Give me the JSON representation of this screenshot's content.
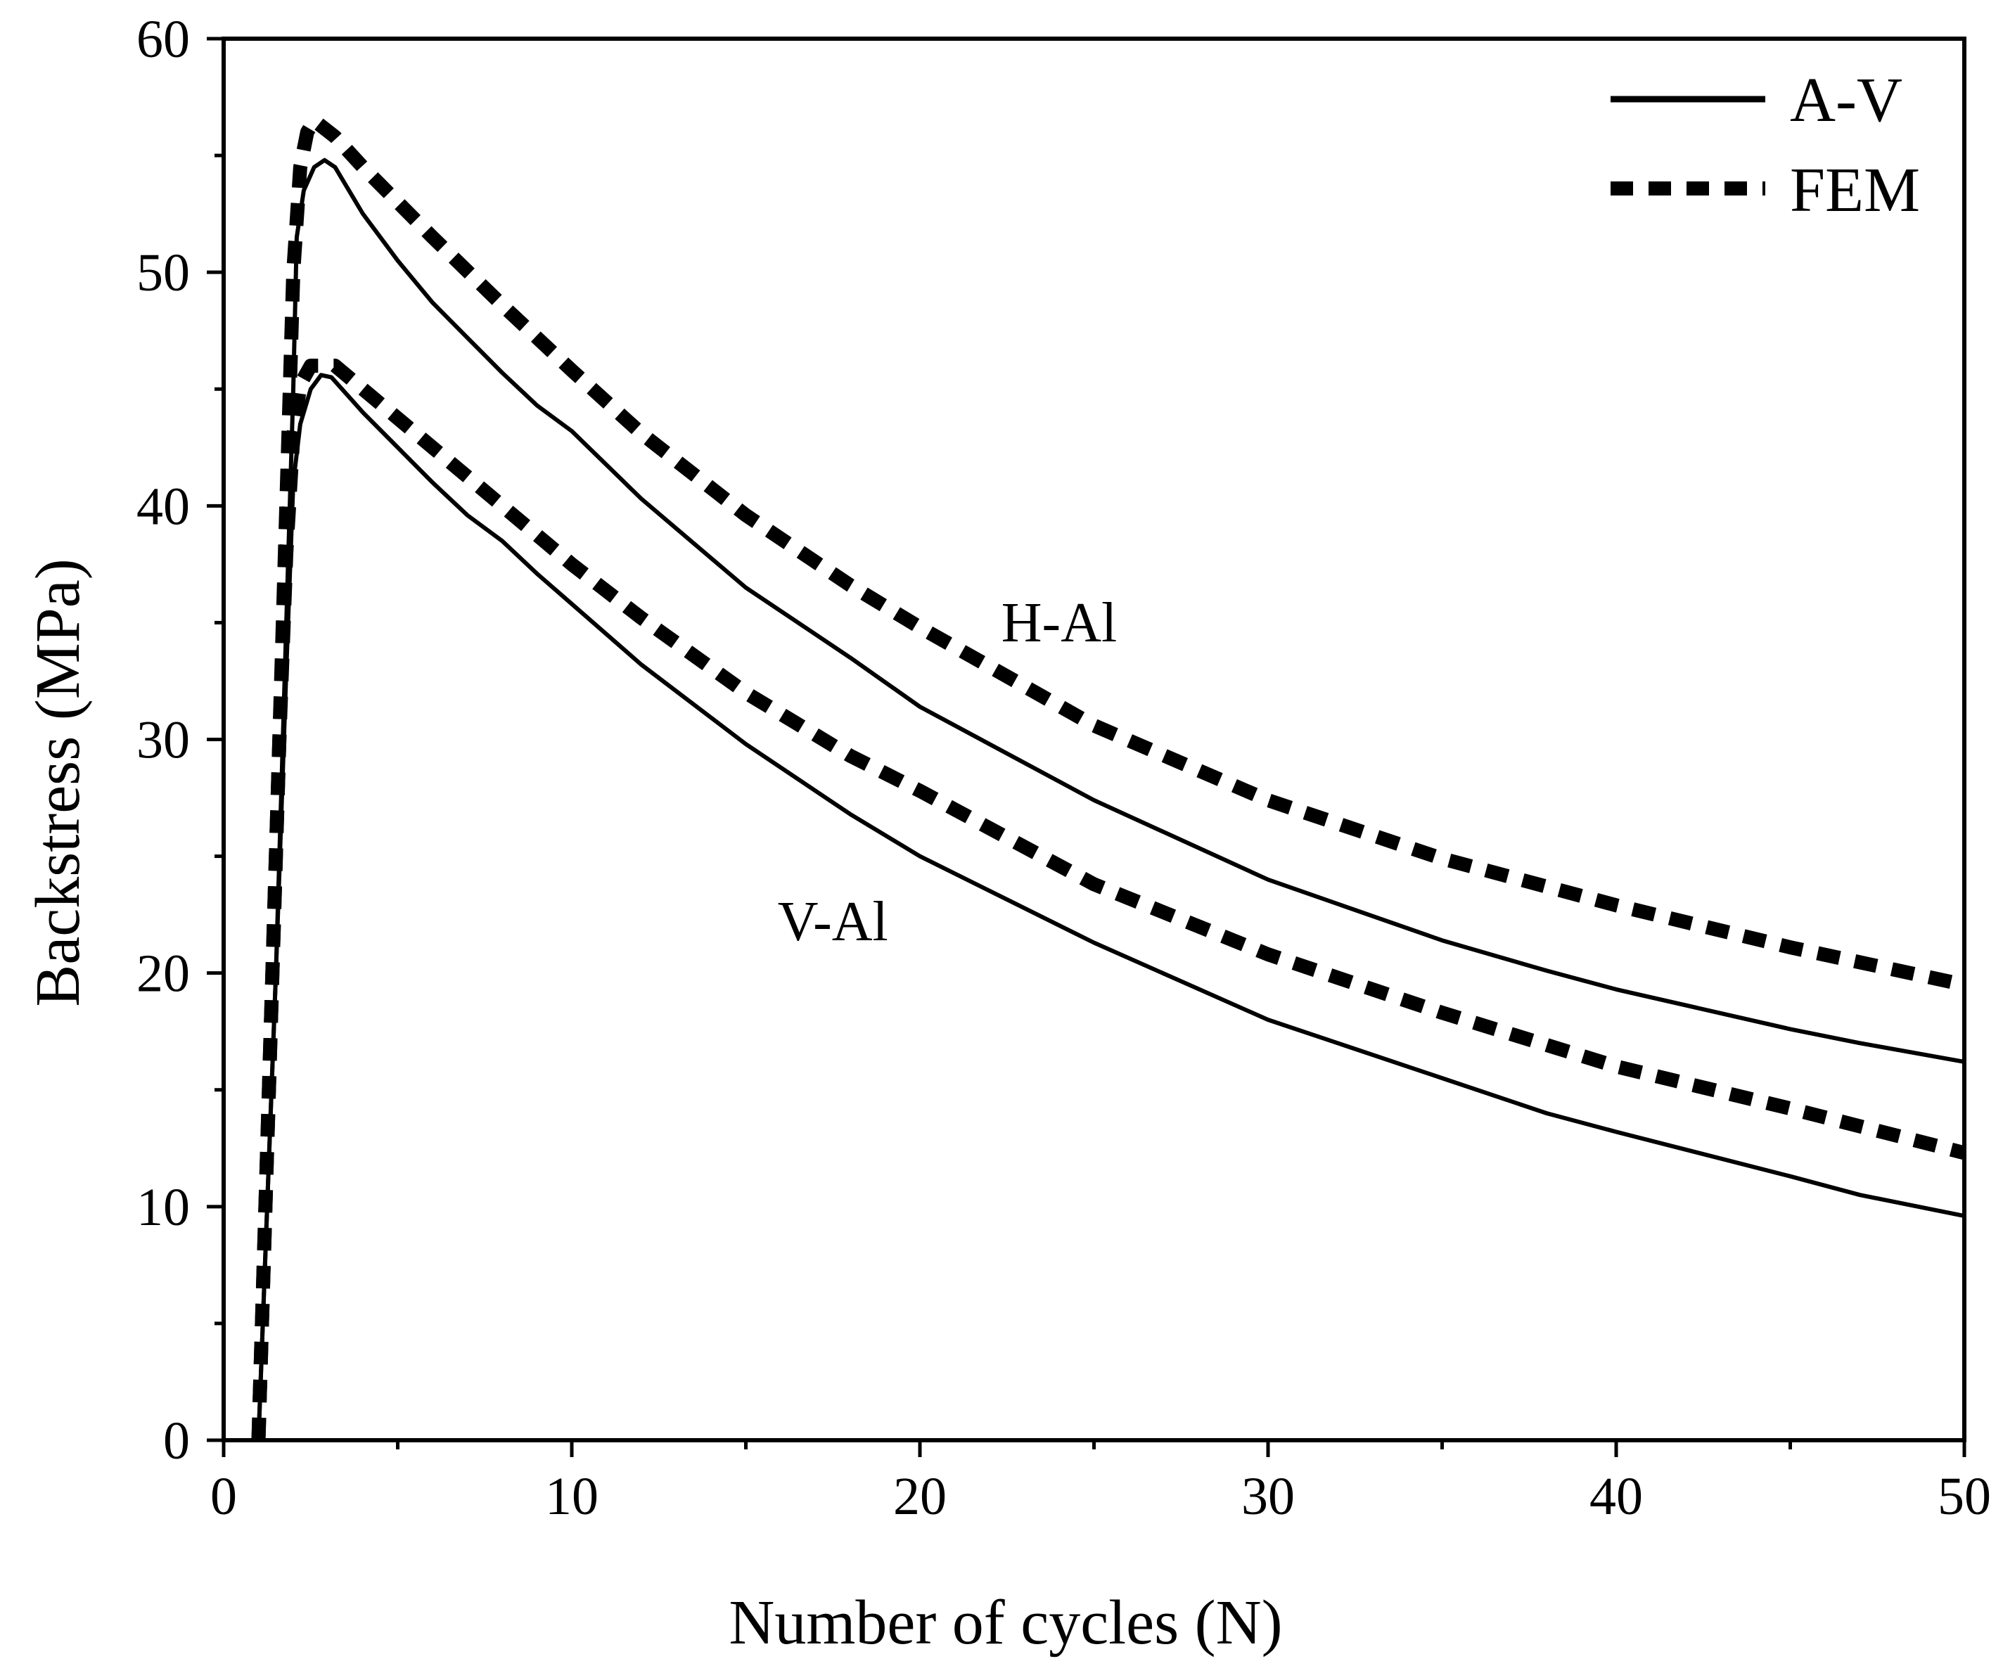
{
  "chart_data": {
    "type": "line",
    "title": "",
    "xlabel": "Number of cycles (N)",
    "ylabel": "Backstress (MPa)",
    "xlim": [
      0,
      50
    ],
    "ylim": [
      0,
      60
    ],
    "x_ticks": [
      0,
      10,
      20,
      30,
      40,
      50
    ],
    "y_ticks": [
      0,
      10,
      20,
      30,
      40,
      50,
      60
    ],
    "x_tick_labels": [
      "0",
      "10",
      "20",
      "30",
      "40",
      "50"
    ],
    "y_tick_labels": [
      "0",
      "10",
      "20",
      "30",
      "40",
      "50",
      "60"
    ],
    "grid": false,
    "legend_position": "top-right",
    "legend": [
      {
        "label": "A-V",
        "style": "solid"
      },
      {
        "label": "FEM",
        "style": "dashed"
      }
    ],
    "annotations": [
      {
        "text": "H-Al",
        "x": 24.0,
        "y": 34.2
      },
      {
        "text": "V-Al",
        "x": 17.5,
        "y": 21.4
      }
    ],
    "series": [
      {
        "name": "A-V (H-Al)",
        "style": "solid",
        "points": [
          [
            1.0,
            0
          ],
          [
            1.2,
            8
          ],
          [
            1.5,
            20
          ],
          [
            1.8,
            35
          ],
          [
            2.0,
            45
          ],
          [
            2.1,
            51.5
          ],
          [
            2.3,
            53.5
          ],
          [
            2.6,
            54.5
          ],
          [
            2.9,
            54.8
          ],
          [
            3.2,
            54.5
          ],
          [
            4.0,
            52.5
          ],
          [
            5.0,
            50.5
          ],
          [
            6.0,
            48.7
          ],
          [
            7.0,
            47.2
          ],
          [
            8.0,
            45.7
          ],
          [
            9.0,
            44.3
          ],
          [
            10.0,
            43.2
          ],
          [
            12.0,
            40.3
          ],
          [
            15.0,
            36.5
          ],
          [
            18.0,
            33.5
          ],
          [
            20.0,
            31.4
          ],
          [
            25.0,
            27.4
          ],
          [
            30.0,
            24.0
          ],
          [
            35.0,
            21.4
          ],
          [
            38.0,
            20.1
          ],
          [
            40.0,
            19.3
          ],
          [
            45.0,
            17.6
          ],
          [
            47.0,
            17.0
          ],
          [
            50.0,
            16.2
          ]
        ]
      },
      {
        "name": "FEM (H-Al)",
        "style": "dashed",
        "points": [
          [
            1.0,
            0
          ],
          [
            1.2,
            10
          ],
          [
            1.4,
            20
          ],
          [
            1.6,
            30
          ],
          [
            1.8,
            40
          ],
          [
            2.0,
            50
          ],
          [
            2.2,
            54.5
          ],
          [
            2.4,
            56.0
          ],
          [
            2.6,
            56.5
          ],
          [
            3.2,
            55.8
          ],
          [
            4.0,
            54.5
          ],
          [
            6.0,
            51.5
          ],
          [
            8.0,
            48.6
          ],
          [
            10.0,
            45.8
          ],
          [
            12.0,
            43.1
          ],
          [
            15.0,
            39.6
          ],
          [
            18.0,
            36.6
          ],
          [
            20.0,
            34.8
          ],
          [
            25.0,
            30.6
          ],
          [
            30.0,
            27.4
          ],
          [
            35.0,
            24.9
          ],
          [
            40.0,
            22.9
          ],
          [
            45.0,
            21.1
          ],
          [
            50.0,
            19.5
          ]
        ]
      },
      {
        "name": "A-V (V-Al)",
        "style": "solid",
        "points": [
          [
            1.0,
            0
          ],
          [
            1.2,
            8
          ],
          [
            1.5,
            20
          ],
          [
            1.8,
            33
          ],
          [
            2.0,
            41
          ],
          [
            2.2,
            43.5
          ],
          [
            2.5,
            45
          ],
          [
            2.8,
            45.6
          ],
          [
            3.1,
            45.5
          ],
          [
            4.0,
            44
          ],
          [
            5.0,
            42.5
          ],
          [
            6.0,
            41
          ],
          [
            7.0,
            39.6
          ],
          [
            8.0,
            38.5
          ],
          [
            9.0,
            37.1
          ],
          [
            10.0,
            35.8
          ],
          [
            12.0,
            33.2
          ],
          [
            15.0,
            29.8
          ],
          [
            18.0,
            26.8
          ],
          [
            20.0,
            25.0
          ],
          [
            25.0,
            21.3
          ],
          [
            30.0,
            18.0
          ],
          [
            35.0,
            15.5
          ],
          [
            38.0,
            14.0
          ],
          [
            40.0,
            13.2
          ],
          [
            45.0,
            11.3
          ],
          [
            47.0,
            10.5
          ],
          [
            50.0,
            9.6
          ]
        ]
      },
      {
        "name": "FEM (V-Al)",
        "style": "dashed",
        "points": [
          [
            1.0,
            0
          ],
          [
            1.2,
            10
          ],
          [
            1.4,
            20
          ],
          [
            1.6,
            30
          ],
          [
            1.8,
            38
          ],
          [
            2.0,
            43
          ],
          [
            2.2,
            45.2
          ],
          [
            2.5,
            46.0
          ],
          [
            3.2,
            46.0
          ],
          [
            4.0,
            45.0
          ],
          [
            6.0,
            42.5
          ],
          [
            8.0,
            40.0
          ],
          [
            10.0,
            37.5
          ],
          [
            12.0,
            35.2
          ],
          [
            15.0,
            32.0
          ],
          [
            18.0,
            29.3
          ],
          [
            20.0,
            27.8
          ],
          [
            25.0,
            23.8
          ],
          [
            30.0,
            20.8
          ],
          [
            35.0,
            18.3
          ],
          [
            40.0,
            16.0
          ],
          [
            45.0,
            14.2
          ],
          [
            50.0,
            12.3
          ]
        ]
      }
    ]
  }
}
